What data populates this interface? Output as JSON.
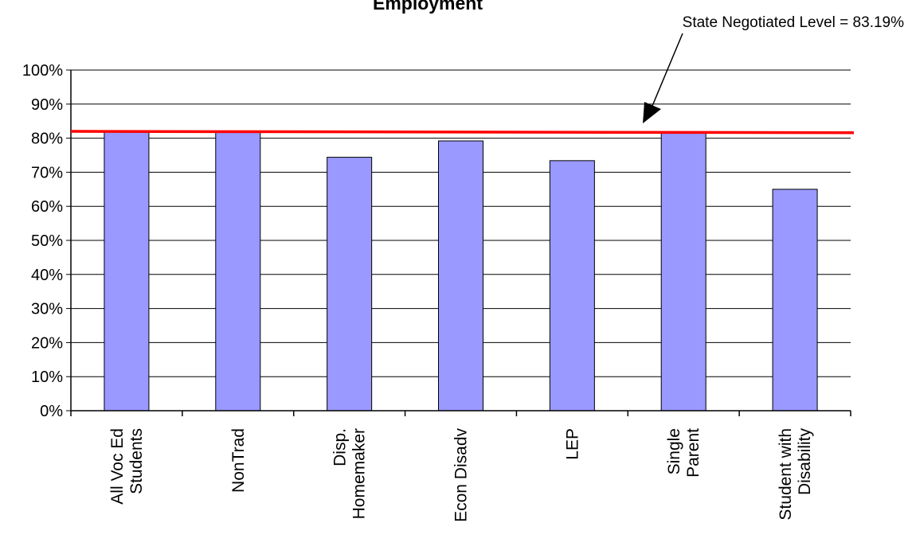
{
  "chart_data": {
    "type": "bar",
    "title": "Employment",
    "categories": [
      [
        "All Voc Ed",
        "Students"
      ],
      [
        "NonTrad"
      ],
      [
        "Disp.",
        "Homemaker"
      ],
      [
        "Econ Disadv"
      ],
      [
        "LEP"
      ],
      [
        "Single",
        "Parent"
      ],
      [
        "Student with",
        "Disability"
      ]
    ],
    "values": [
      82,
      82,
      74.4,
      79.2,
      73.4,
      81.6,
      65
    ],
    "ylim": [
      0,
      100
    ],
    "y_ticks": [
      "0%",
      "10%",
      "20%",
      "30%",
      "40%",
      "50%",
      "60%",
      "70%",
      "80%",
      "90%",
      "100%"
    ],
    "grid": true,
    "bar_color": "#9999FF",
    "reference_line": {
      "value_start": 82,
      "value_end": 81.6,
      "color": "#FF0000"
    },
    "annotation": "State Negotiated Level = 83.19%"
  }
}
